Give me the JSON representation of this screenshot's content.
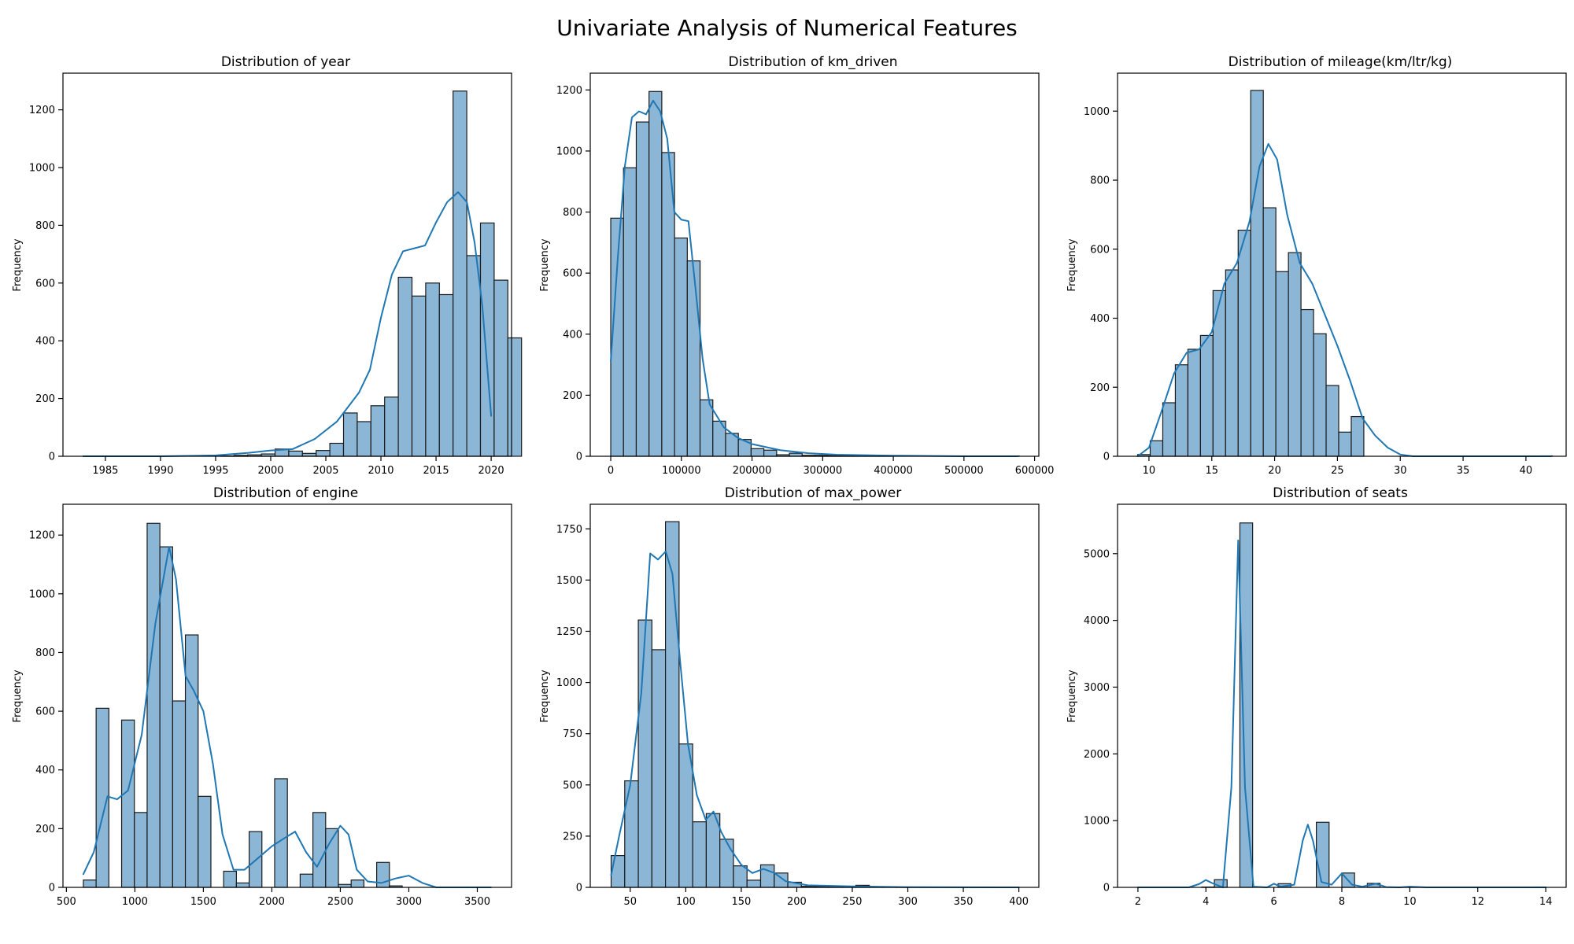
{
  "figure": {
    "title": "Univariate Analysis of Numerical Features"
  },
  "colors": {
    "bar_fill": "#8cb6d6",
    "bar_edge": "#1a1a1a",
    "kde_line": "#1f77b4",
    "axis": "#000000"
  },
  "chart_data": [
    {
      "type": "bar",
      "title": "Distribution of year",
      "xlabel": "",
      "ylabel": "Frequency",
      "xlim": [
        1981.15,
        2021.85
      ],
      "ylim": [
        0,
        1327
      ],
      "xticks": [
        1985,
        1990,
        1995,
        2000,
        2005,
        2010,
        2015,
        2020
      ],
      "yticks": [
        0,
        200,
        400,
        600,
        800,
        1000,
        1200
      ],
      "bins": {
        "start": 1983,
        "width": 1.2424
      },
      "values": [
        1,
        0,
        0,
        0,
        0,
        0,
        0,
        0,
        0,
        0,
        1,
        3,
        5,
        8,
        25,
        18,
        10,
        20,
        45,
        150,
        120,
        175,
        205,
        620,
        555,
        600,
        560,
        1265,
        695,
        808,
        610,
        410
      ],
      "kde": [
        [
          1983,
          0
        ],
        [
          1990,
          0
        ],
        [
          1995,
          3
        ],
        [
          1998,
          12
        ],
        [
          2000,
          20
        ],
        [
          2002,
          25
        ],
        [
          2004,
          60
        ],
        [
          2006,
          120
        ],
        [
          2008,
          220
        ],
        [
          2009,
          300
        ],
        [
          2010,
          480
        ],
        [
          2011,
          630
        ],
        [
          2012,
          710
        ],
        [
          2013,
          720
        ],
        [
          2014,
          730
        ],
        [
          2015,
          810
        ],
        [
          2016,
          880
        ],
        [
          2017,
          915
        ],
        [
          2017.8,
          880
        ],
        [
          2018.5,
          740
        ],
        [
          2019.2,
          520
        ],
        [
          2020,
          140
        ]
      ]
    },
    {
      "type": "bar",
      "title": "Distribution of km_driven",
      "xlabel": "",
      "ylabel": "Frequency",
      "xlim": [
        -29000,
        606000
      ],
      "ylim": [
        0,
        1255
      ],
      "xticks": [
        0,
        100000,
        200000,
        300000,
        400000,
        500000,
        600000
      ],
      "yticks": [
        0,
        200,
        400,
        600,
        800,
        1000,
        1200
      ],
      "bins": {
        "start": 1,
        "width": 18065
      },
      "values": [
        780,
        945,
        1095,
        1195,
        995,
        715,
        640,
        185,
        115,
        75,
        55,
        25,
        20,
        5,
        10,
        3,
        3,
        2,
        1,
        1,
        1,
        1,
        0,
        0,
        0,
        0,
        0,
        0,
        0,
        0,
        0,
        1
      ],
      "kde": [
        [
          1,
          310
        ],
        [
          10000,
          650
        ],
        [
          20000,
          950
        ],
        [
          30000,
          1110
        ],
        [
          40000,
          1130
        ],
        [
          50000,
          1120
        ],
        [
          60000,
          1165
        ],
        [
          70000,
          1130
        ],
        [
          80000,
          1040
        ],
        [
          90000,
          800
        ],
        [
          100000,
          775
        ],
        [
          110000,
          770
        ],
        [
          120000,
          550
        ],
        [
          130000,
          320
        ],
        [
          140000,
          170
        ],
        [
          160000,
          95
        ],
        [
          180000,
          60
        ],
        [
          200000,
          40
        ],
        [
          240000,
          20
        ],
        [
          280000,
          10
        ],
        [
          320000,
          5
        ],
        [
          400000,
          2
        ],
        [
          500000,
          0
        ],
        [
          576000,
          0
        ]
      ]
    },
    {
      "type": "bar",
      "title": "Distribution of mileage(km/ltr/kg)",
      "xlabel": "",
      "ylabel": "Frequency",
      "xlim": [
        7.5,
        43.2
      ],
      "ylim": [
        0,
        1110
      ],
      "xticks": [
        10,
        15,
        20,
        25,
        30,
        35,
        40
      ],
      "yticks": [
        0,
        200,
        400,
        600,
        800,
        1000
      ],
      "bins": {
        "start": 9.1,
        "width": 1.0
      },
      "values": [
        5,
        45,
        155,
        265,
        310,
        350,
        480,
        540,
        655,
        1060,
        720,
        535,
        590,
        425,
        355,
        205,
        70,
        115,
        0,
        0,
        0,
        0,
        0,
        0,
        0,
        0,
        0,
        0,
        0,
        0,
        0,
        0,
        1
      ],
      "kde": [
        [
          9.1,
          0
        ],
        [
          10,
          25
        ],
        [
          11,
          130
        ],
        [
          12,
          240
        ],
        [
          13,
          300
        ],
        [
          14,
          310
        ],
        [
          15,
          360
        ],
        [
          16,
          500
        ],
        [
          17,
          560
        ],
        [
          18,
          680
        ],
        [
          18.8,
          840
        ],
        [
          19.5,
          905
        ],
        [
          20.2,
          860
        ],
        [
          21,
          700
        ],
        [
          22,
          560
        ],
        [
          23,
          500
        ],
        [
          24,
          410
        ],
        [
          25,
          320
        ],
        [
          26,
          220
        ],
        [
          27,
          110
        ],
        [
          28,
          60
        ],
        [
          29,
          25
        ],
        [
          30,
          5
        ],
        [
          31,
          0
        ],
        [
          42,
          0
        ]
      ]
    },
    {
      "type": "bar",
      "title": "Distribution of engine",
      "xlabel": "",
      "ylabel": "Frequency",
      "xlim": [
        475,
        3750
      ],
      "ylim": [
        0,
        1305
      ],
      "xticks": [
        500,
        1000,
        1500,
        2000,
        2500,
        3000,
        3500
      ],
      "yticks": [
        0,
        200,
        400,
        600,
        800,
        1000,
        1200
      ],
      "bins": {
        "start": 624,
        "width": 93.1
      },
      "values": [
        25,
        610,
        0,
        570,
        255,
        1240,
        1160,
        635,
        860,
        310,
        0,
        55,
        15,
        190,
        0,
        370,
        0,
        45,
        255,
        200,
        10,
        25,
        0,
        85,
        5,
        0,
        0,
        0,
        0,
        0,
        0,
        0
      ],
      "kde": [
        [
          624,
          45
        ],
        [
          700,
          120
        ],
        [
          800,
          310
        ],
        [
          870,
          300
        ],
        [
          950,
          330
        ],
        [
          1050,
          520
        ],
        [
          1150,
          900
        ],
        [
          1250,
          1160
        ],
        [
          1300,
          1050
        ],
        [
          1370,
          720
        ],
        [
          1430,
          670
        ],
        [
          1500,
          600
        ],
        [
          1570,
          420
        ],
        [
          1640,
          180
        ],
        [
          1720,
          60
        ],
        [
          1800,
          60
        ],
        [
          1900,
          100
        ],
        [
          2000,
          140
        ],
        [
          2100,
          170
        ],
        [
          2170,
          190
        ],
        [
          2250,
          120
        ],
        [
          2330,
          70
        ],
        [
          2420,
          150
        ],
        [
          2500,
          210
        ],
        [
          2560,
          180
        ],
        [
          2620,
          60
        ],
        [
          2700,
          20
        ],
        [
          2800,
          15
        ],
        [
          2900,
          30
        ],
        [
          3000,
          40
        ],
        [
          3100,
          15
        ],
        [
          3200,
          0
        ],
        [
          3600,
          0
        ]
      ]
    },
    {
      "type": "bar",
      "title": "Distribution of max_power",
      "xlabel": "",
      "ylabel": "Frequency",
      "xlim": [
        14,
        418
      ],
      "ylim": [
        0,
        1870
      ],
      "xticks": [
        50,
        100,
        150,
        200,
        250,
        300,
        350,
        400
      ],
      "yticks": [
        0,
        250,
        500,
        750,
        1000,
        1250,
        1500,
        1750
      ],
      "bins": {
        "start": 32.8,
        "width": 12.24
      },
      "values": [
        155,
        520,
        1305,
        1160,
        1785,
        700,
        320,
        360,
        235,
        105,
        35,
        110,
        70,
        25,
        5,
        5,
        5,
        3,
        10,
        1,
        1,
        1,
        0,
        0,
        0,
        0,
        0,
        0,
        0,
        0,
        0,
        0
      ],
      "kde": [
        [
          32.8,
          60
        ],
        [
          40,
          250
        ],
        [
          50,
          500
        ],
        [
          60,
          950
        ],
        [
          68,
          1630
        ],
        [
          75,
          1600
        ],
        [
          82,
          1640
        ],
        [
          88,
          1530
        ],
        [
          95,
          1100
        ],
        [
          102,
          700
        ],
        [
          110,
          450
        ],
        [
          118,
          330
        ],
        [
          125,
          370
        ],
        [
          132,
          270
        ],
        [
          140,
          190
        ],
        [
          150,
          110
        ],
        [
          160,
          70
        ],
        [
          170,
          90
        ],
        [
          180,
          70
        ],
        [
          190,
          30
        ],
        [
          210,
          10
        ],
        [
          250,
          5
        ],
        [
          300,
          1
        ],
        [
          400,
          0
        ]
      ]
    },
    {
      "type": "bar",
      "title": "Distribution of seats",
      "xlabel": "",
      "ylabel": "Frequency",
      "xlim": [
        1.4,
        14.6
      ],
      "ylim": [
        0,
        5740
      ],
      "xticks": [
        2,
        4,
        6,
        8,
        10,
        12,
        14
      ],
      "yticks": [
        0,
        1000,
        2000,
        3000,
        4000,
        5000
      ],
      "bins": {
        "start": 2,
        "width": 0.375
      },
      "values": [
        0,
        0,
        0,
        0,
        0,
        5,
        115,
        0,
        5460,
        0,
        0,
        55,
        0,
        0,
        975,
        0,
        215,
        0,
        60,
        0,
        0,
        5,
        0,
        0,
        0,
        0,
        0,
        0,
        0,
        0,
        0,
        5
      ],
      "kde": [
        [
          2,
          0
        ],
        [
          3.5,
          0
        ],
        [
          3.8,
          50
        ],
        [
          4,
          110
        ],
        [
          4.2,
          60
        ],
        [
          4.5,
          0
        ],
        [
          4.75,
          1500
        ],
        [
          4.95,
          5200
        ],
        [
          5.15,
          1500
        ],
        [
          5.4,
          10
        ],
        [
          5.8,
          0
        ],
        [
          6,
          55
        ],
        [
          6.2,
          10
        ],
        [
          6.6,
          40
        ],
        [
          6.85,
          700
        ],
        [
          7,
          940
        ],
        [
          7.15,
          700
        ],
        [
          7.4,
          80
        ],
        [
          7.7,
          40
        ],
        [
          8,
          210
        ],
        [
          8.3,
          40
        ],
        [
          8.6,
          10
        ],
        [
          9,
          55
        ],
        [
          9.3,
          5
        ],
        [
          9.7,
          0
        ],
        [
          10,
          10
        ],
        [
          10.5,
          0
        ],
        [
          14,
          0
        ]
      ]
    }
  ]
}
